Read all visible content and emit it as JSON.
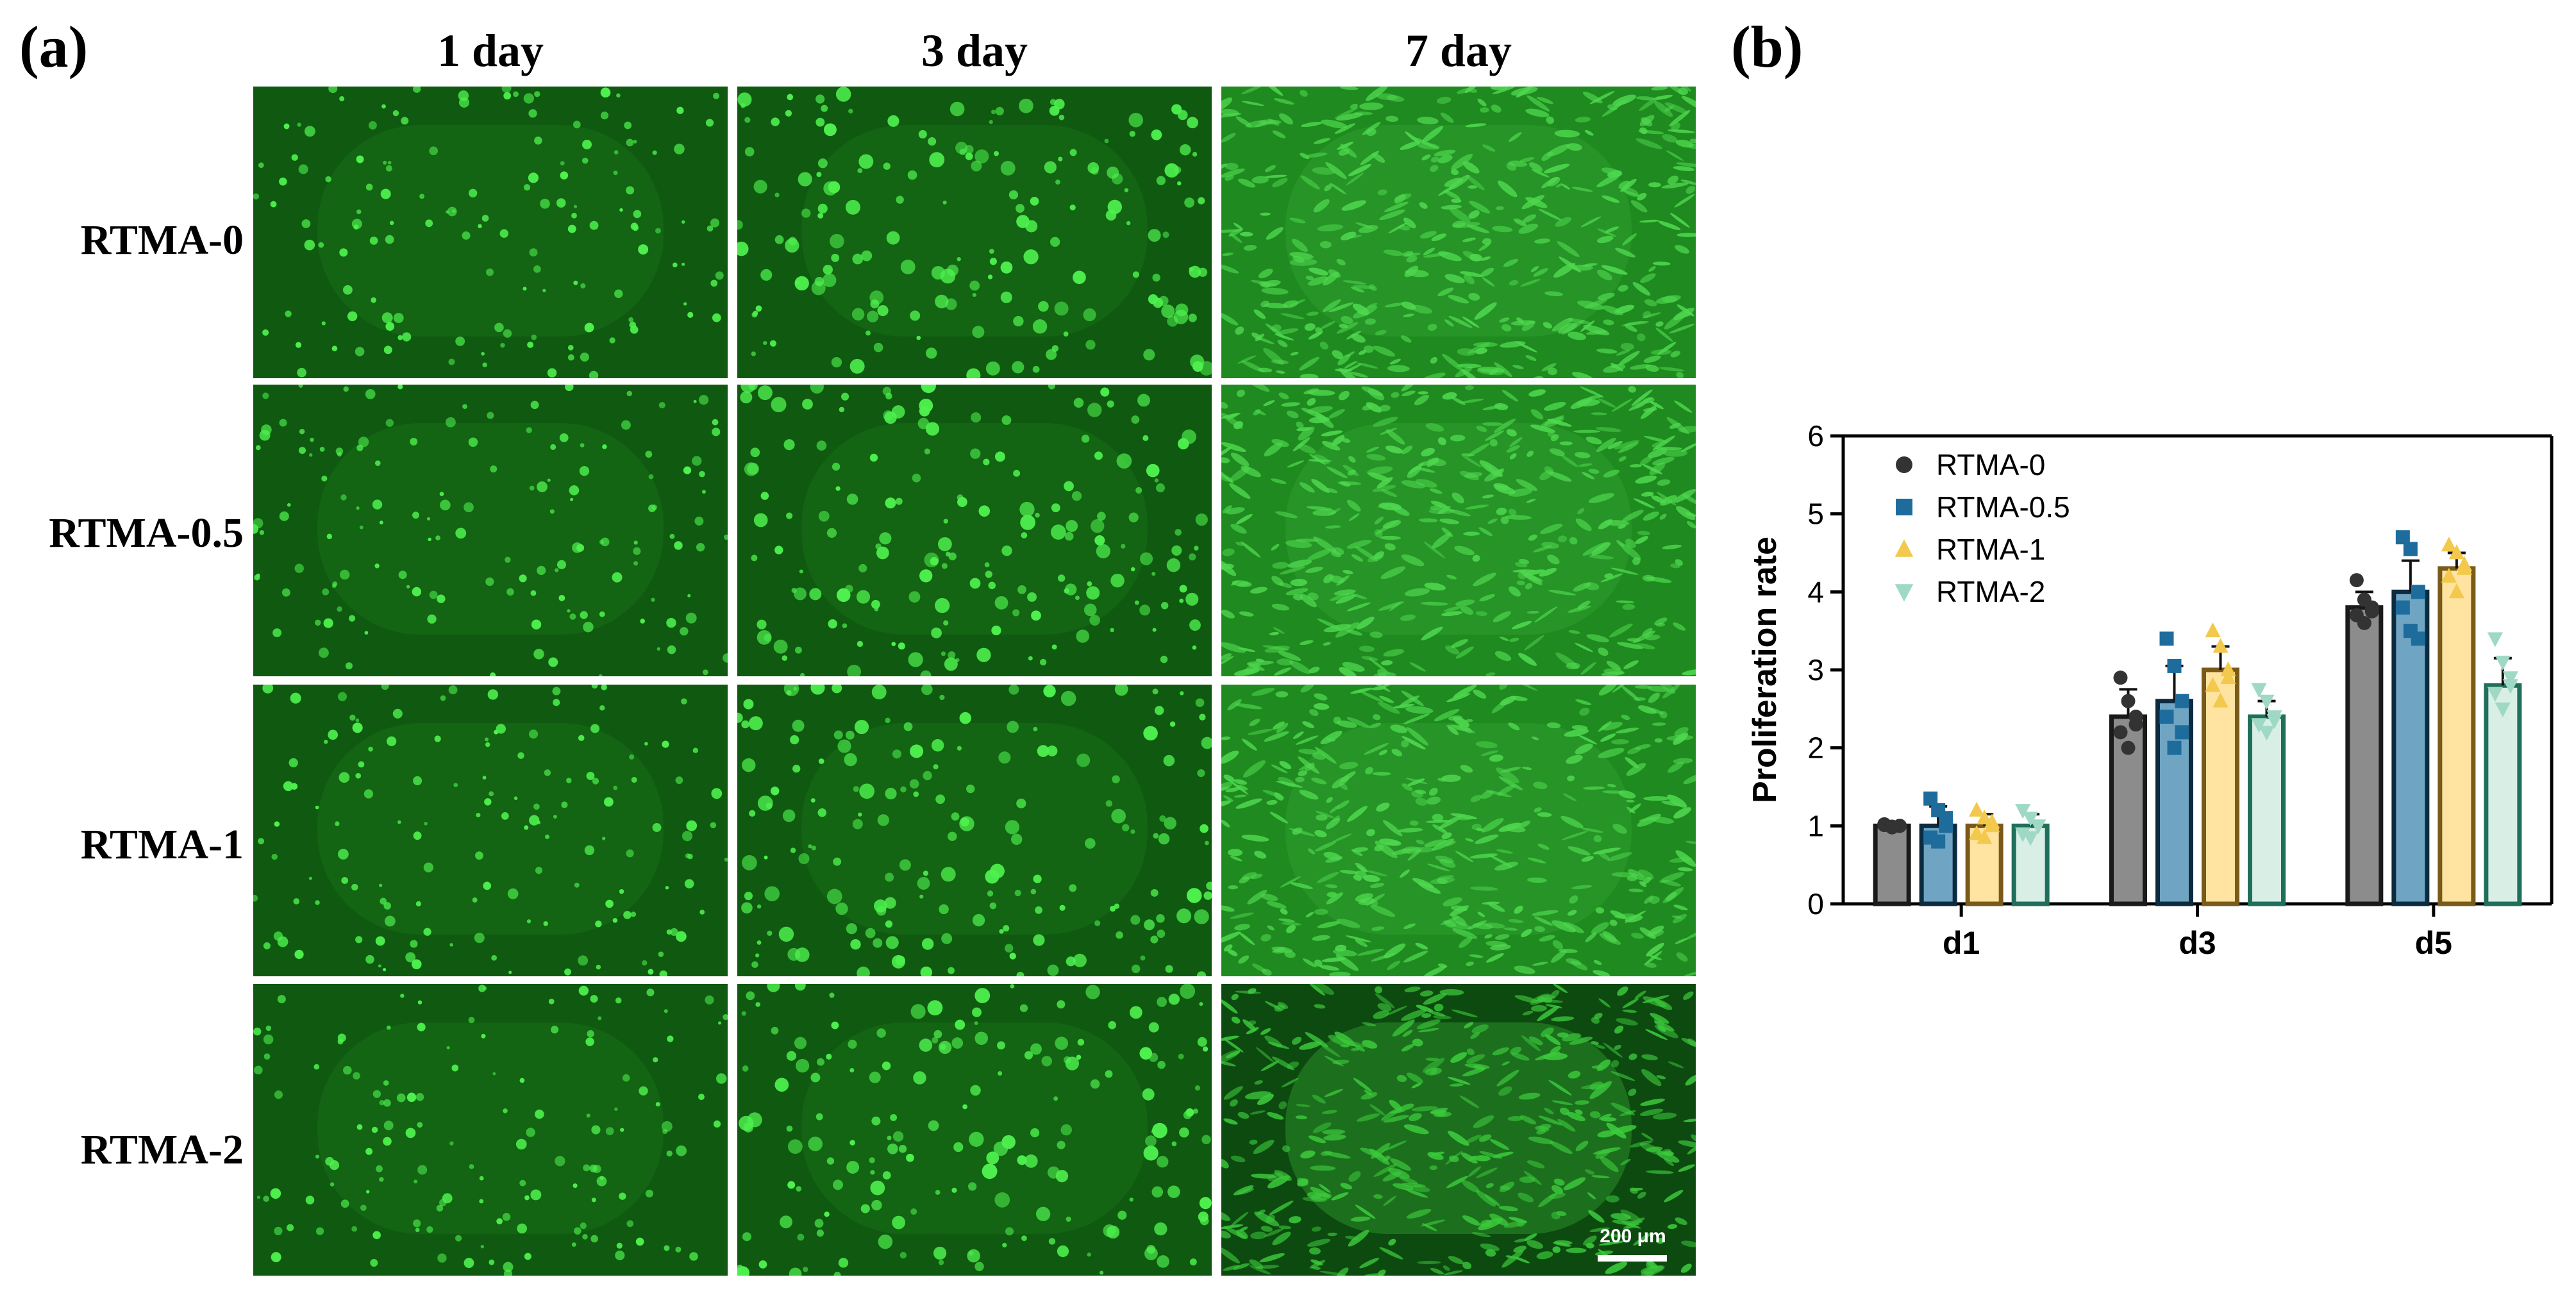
{
  "panel_a": {
    "letter": "(a)",
    "columns": [
      "1 day",
      "3 day",
      "7 day"
    ],
    "rows": [
      "RTMA-0",
      "RTMA-0.5",
      "RTMA-1",
      "RTMA-2"
    ],
    "scale_bar": "200 μm"
  },
  "panel_b": {
    "letter": "(b)"
  },
  "colors": {
    "RTMA-0": "#8c8c8c",
    "RTMA-0.5": "#6fa4c2",
    "RTMA-1": "#ffe3a0",
    "RTMA-2": "#d9efe6"
  },
  "chart_data": {
    "type": "bar",
    "categories": [
      "d1",
      "d3",
      "d5"
    ],
    "ylabel": "Proliferation rate",
    "ylim": [
      0,
      6
    ],
    "yticks": [
      0,
      1,
      2,
      3,
      4,
      5,
      6
    ],
    "legend_position": "top-left",
    "series": [
      {
        "name": "RTMA-0",
        "values": [
          1.0,
          2.4,
          3.8
        ],
        "errors": [
          0.05,
          0.35,
          0.2
        ],
        "points": [
          [
            1.02,
            0.98,
            1.0,
            1.01,
            0.99,
            1.0
          ],
          [
            2.9,
            2.6,
            2.4,
            2.2,
            2.0,
            2.3
          ],
          [
            4.15,
            3.9,
            3.8,
            3.7,
            3.6,
            3.75
          ]
        ],
        "fill": "#8c8c8c",
        "edge": "#1a1a1a",
        "marker": "circle",
        "marker_color": "#333333"
      },
      {
        "name": "RTMA-0.5",
        "values": [
          1.0,
          2.6,
          4.0
        ],
        "errors": [
          0.25,
          0.45,
          0.4
        ],
        "points": [
          [
            1.35,
            1.2,
            1.0,
            0.85,
            0.8,
            1.1
          ],
          [
            3.4,
            3.05,
            2.6,
            2.4,
            2.0,
            2.2
          ],
          [
            4.7,
            4.55,
            4.0,
            3.8,
            3.5,
            3.4
          ]
        ],
        "fill": "#6fa4c2",
        "edge": "#0d2b3f",
        "marker": "square",
        "marker_color": "#1d6c9c"
      },
      {
        "name": "RTMA-1",
        "values": [
          1.0,
          3.0,
          4.3
        ],
        "errors": [
          0.15,
          0.3,
          0.2
        ],
        "points": [
          [
            1.2,
            1.1,
            1.0,
            0.9,
            0.85,
            1.05
          ],
          [
            3.5,
            3.3,
            3.0,
            2.8,
            2.6,
            2.9
          ],
          [
            4.6,
            4.5,
            4.3,
            4.2,
            4.0,
            4.35
          ]
        ],
        "fill": "#ffe3a0",
        "edge": "#7a5a1a",
        "marker": "triangle-up",
        "marker_color": "#f2c94c"
      },
      {
        "name": "RTMA-2",
        "values": [
          1.0,
          2.4,
          2.8
        ],
        "errors": [
          0.15,
          0.2,
          0.35
        ],
        "points": [
          [
            1.2,
            1.1,
            1.0,
            0.9,
            0.85,
            1.0
          ],
          [
            2.75,
            2.6,
            2.4,
            2.3,
            2.2,
            2.35
          ],
          [
            3.4,
            3.1,
            2.8,
            2.7,
            2.5,
            2.9
          ]
        ],
        "fill": "#d9efe6",
        "edge": "#1f6f5a",
        "marker": "triangle-down",
        "marker_color": "#9fd9c5"
      }
    ]
  }
}
